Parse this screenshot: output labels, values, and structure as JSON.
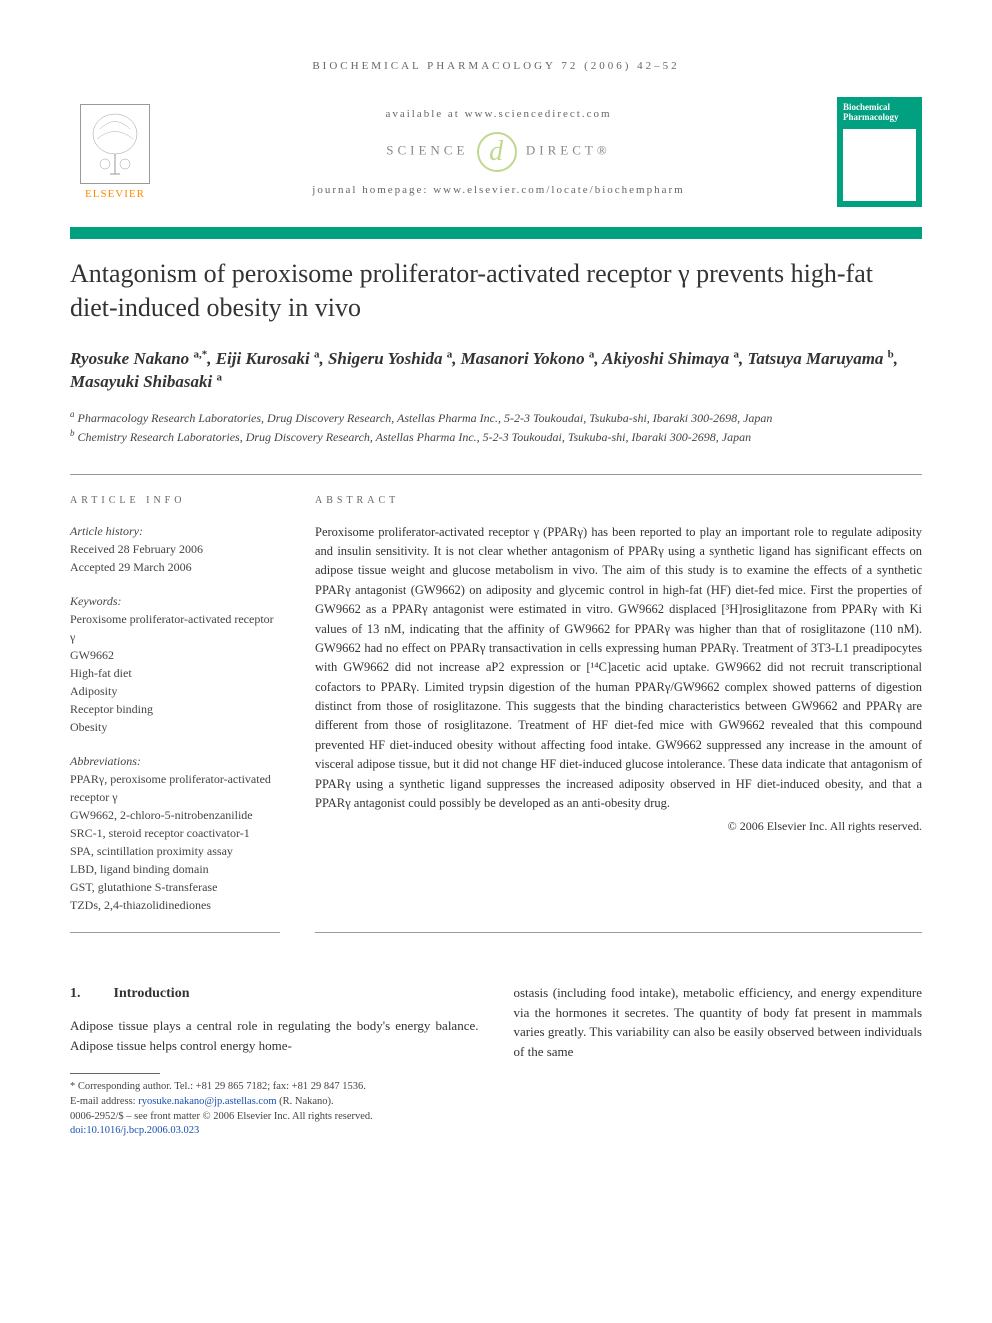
{
  "running_head": "BIOCHEMICAL PHARMACOLOGY 72 (2006) 42–52",
  "header": {
    "available": "available at www.sciencedirect.com",
    "sd_left": "SCIENCE",
    "sd_right": "DIRECT®",
    "homepage": "journal homepage: www.elsevier.com/locate/biochempharm",
    "elsevier_label": "ELSEVIER",
    "journal_cover_title": "Biochemical Pharmacology"
  },
  "title": "Antagonism of peroxisome proliferator-activated receptor γ prevents high-fat diet-induced obesity in vivo",
  "authors_html": "Ryosuke Nakano <sup>a,*</sup>, Eiji Kurosaki <sup>a</sup>, Shigeru Yoshida <sup>a</sup>, Masanori Yokono <sup>a</sup>, Akiyoshi Shimaya <sup>a</sup>, Tatsuya Maruyama <sup>b</sup>, Masayuki Shibasaki <sup>a</sup>",
  "affiliations": {
    "a": "Pharmacology Research Laboratories, Drug Discovery Research, Astellas Pharma Inc., 5-2-3 Toukoudai, Tsukuba-shi, Ibaraki 300-2698, Japan",
    "b": "Chemistry Research Laboratories, Drug Discovery Research, Astellas Pharma Inc., 5-2-3 Toukoudai, Tsukuba-shi, Ibaraki 300-2698, Japan"
  },
  "info": {
    "heading": "ARTICLE INFO",
    "history_label": "Article history:",
    "received": "Received 28 February 2006",
    "accepted": "Accepted 29 March 2006",
    "keywords_label": "Keywords:",
    "keywords": [
      "Peroxisome proliferator-activated receptor γ",
      "GW9662",
      "High-fat diet",
      "Adiposity",
      "Receptor binding",
      "Obesity"
    ],
    "abbrev_label": "Abbreviations:",
    "abbreviations": [
      "PPARγ, peroxisome proliferator-activated receptor γ",
      "GW9662, 2-chloro-5-nitrobenzanilide",
      "SRC-1, steroid receptor coactivator-1",
      "SPA, scintillation proximity assay",
      "LBD, ligand binding domain",
      "GST, glutathione S-transferase",
      "TZDs, 2,4-thiazolidinediones"
    ]
  },
  "abstract": {
    "heading": "ABSTRACT",
    "text": "Peroxisome proliferator-activated receptor γ (PPARγ) has been reported to play an important role to regulate adiposity and insulin sensitivity. It is not clear whether antagonism of PPARγ using a synthetic ligand has significant effects on adipose tissue weight and glucose metabolism in vivo. The aim of this study is to examine the effects of a synthetic PPARγ antagonist (GW9662) on adiposity and glycemic control in high-fat (HF) diet-fed mice. First the properties of GW9662 as a PPARγ antagonist were estimated in vitro. GW9662 displaced [³H]rosiglitazone from PPARγ with Ki values of 13 nM, indicating that the affinity of GW9662 for PPARγ was higher than that of rosiglitazone (110 nM). GW9662 had no effect on PPARγ transactivation in cells expressing human PPARγ. Treatment of 3T3-L1 preadipocytes with GW9662 did not increase aP2 expression or [¹⁴C]acetic acid uptake. GW9662 did not recruit transcriptional cofactors to PPARγ. Limited trypsin digestion of the human PPARγ/GW9662 complex showed patterns of digestion distinct from those of rosiglitazone. This suggests that the binding characteristics between GW9662 and PPARγ are different from those of rosiglitazone. Treatment of HF diet-fed mice with GW9662 revealed that this compound prevented HF diet-induced obesity without affecting food intake. GW9662 suppressed any increase in the amount of visceral adipose tissue, but it did not change HF diet-induced glucose intolerance. These data indicate that antagonism of PPARγ using a synthetic ligand suppresses the increased adiposity observed in HF diet-induced obesity, and that a PPARγ antagonist could possibly be developed as an anti-obesity drug.",
    "copyright": "© 2006 Elsevier Inc. All rights reserved."
  },
  "body": {
    "section_num": "1.",
    "section_title": "Introduction",
    "col1": "Adipose tissue plays a central role in regulating the body's energy balance. Adipose tissue helps control energy home-",
    "col2": "ostasis (including food intake), metabolic efficiency, and energy expenditure via the hormones it secretes. The quantity of body fat present in mammals varies greatly. This variability can also be easily observed between individuals of the same"
  },
  "footnotes": {
    "corr": "* Corresponding author. Tel.: +81 29 865 7182; fax: +81 29 847 1536.",
    "email_label": "E-mail address: ",
    "email": "ryosuke.nakano@jp.astellas.com",
    "email_tail": " (R. Nakano).",
    "issn": "0006-2952/$ – see front matter © 2006 Elsevier Inc. All rights reserved.",
    "doi": "doi:10.1016/j.bcp.2006.03.023"
  },
  "colors": {
    "brand": "#00a080",
    "elsevier": "#ff8c00",
    "link": "#1a4fb3"
  }
}
